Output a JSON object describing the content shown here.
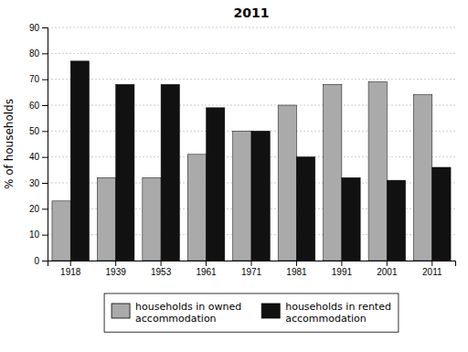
{
  "chart_data": {
    "type": "bar",
    "title": "2011",
    "ylabel": "% of households",
    "categories": [
      "1918",
      "1939",
      "1953",
      "1961",
      "1971",
      "1981",
      "1991",
      "2001",
      "2011"
    ],
    "series": [
      {
        "name": "households in owned\naccommodation",
        "color": "#aaaaaa",
        "values": [
          23,
          32,
          32,
          41,
          50,
          60,
          68,
          69,
          64
        ]
      },
      {
        "name": "households in rented\naccommodation",
        "color": "#111111",
        "values": [
          77,
          68,
          68,
          59,
          50,
          40,
          32,
          31,
          36
        ]
      }
    ],
    "ylim": [
      0,
      90
    ],
    "yticks": [
      0,
      10,
      20,
      30,
      40,
      50,
      60,
      70,
      80,
      90
    ],
    "grid": true,
    "legend": "bottom"
  }
}
